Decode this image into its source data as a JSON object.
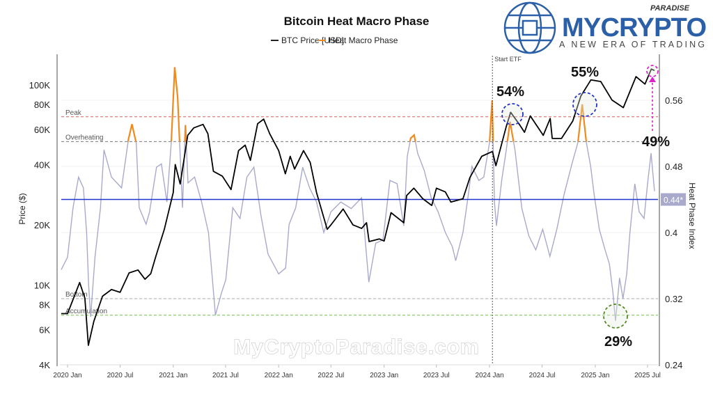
{
  "chart_data": {
    "type": "line",
    "title": "Bitcoin Heat Macro Phase",
    "legend": {
      "placement": "top-center",
      "entries": [
        "BTC Price [USD]",
        "Heat Macro Phase"
      ]
    },
    "ylabel": "Price ($)",
    "y2label": "Heat Phase Index",
    "y_scale": "log",
    "ylim": [
      4000,
      130000
    ],
    "y2lim": [
      0.24,
      0.615
    ],
    "xlim": [
      "2019-12-10",
      "2025-07-28"
    ],
    "grid": true,
    "y_ticks": [
      {
        "v": 4000,
        "label": "4K"
      },
      {
        "v": 6000,
        "label": "6K"
      },
      {
        "v": 8000,
        "label": "8K"
      },
      {
        "v": 10000,
        "label": "10K"
      },
      {
        "v": 20000,
        "label": "20K"
      },
      {
        "v": 40000,
        "label": "40K"
      },
      {
        "v": 60000,
        "label": "60K"
      },
      {
        "v": 80000,
        "label": "80K"
      },
      {
        "v": 100000,
        "label": "100K"
      }
    ],
    "y2_ticks": [
      {
        "v": 0.24,
        "label": "0.24"
      },
      {
        "v": 0.32,
        "label": "0.32"
      },
      {
        "v": 0.4,
        "label": "0.4"
      },
      {
        "v": 0.48,
        "label": "0.48"
      },
      {
        "v": 0.56,
        "label": "0.56"
      }
    ],
    "x_ticks": [
      {
        "d": "2020-01-01",
        "label": "2020 Jan"
      },
      {
        "d": "2020-07-01",
        "label": "2020 Jul"
      },
      {
        "d": "2021-01-01",
        "label": "2021 Jan"
      },
      {
        "d": "2021-07-01",
        "label": "2021 Jul"
      },
      {
        "d": "2022-01-01",
        "label": "2022 Jan"
      },
      {
        "d": "2022-07-01",
        "label": "2022 Jul"
      },
      {
        "d": "2023-01-01",
        "label": "2023 Jan"
      },
      {
        "d": "2023-07-01",
        "label": "2023 Jul"
      },
      {
        "d": "2024-01-01",
        "label": "2024 Jan"
      },
      {
        "d": "2024-07-01",
        "label": "2024 Jul"
      },
      {
        "d": "2025-01-01",
        "label": "2025 Jan"
      },
      {
        "d": "2025-07-01",
        "label": "2025 Jul"
      }
    ],
    "zones": [
      {
        "name": "Peak",
        "value": 0.54,
        "color": "#e05a5a"
      },
      {
        "name": "Overheating",
        "value": 0.51,
        "color": "#777777"
      },
      {
        "name": "Bottom",
        "value": 0.32,
        "color": "#aaaaaa"
      },
      {
        "name": "Accumulation",
        "value": 0.3,
        "color": "#6cc24a"
      }
    ],
    "current_level": {
      "value": 0.44,
      "label": "0.44*",
      "color": "#2233cc"
    },
    "event": {
      "date": "2024-01-11",
      "label": "Start ETF"
    },
    "annotations": [
      {
        "label": "54%",
        "color": "#2233cc"
      },
      {
        "label": "55%",
        "color": "#2233cc"
      },
      {
        "label": "49%",
        "color": "#dd22cc"
      },
      {
        "label": "29%",
        "color": "#558822"
      }
    ],
    "series": [
      {
        "name": "BTC Price [USD]",
        "axis": "left",
        "color": "#000000",
        "points": [
          [
            "2019-12-10",
            7200
          ],
          [
            "2020-01-01",
            7200
          ],
          [
            "2020-02-12",
            10300
          ],
          [
            "2020-03-01",
            8600
          ],
          [
            "2020-03-13",
            5000
          ],
          [
            "2020-04-01",
            6600
          ],
          [
            "2020-05-01",
            8800
          ],
          [
            "2020-06-01",
            9500
          ],
          [
            "2020-07-01",
            9200
          ],
          [
            "2020-08-01",
            11500
          ],
          [
            "2020-09-01",
            11900
          ],
          [
            "2020-09-25",
            10700
          ],
          [
            "2020-10-15",
            11400
          ],
          [
            "2020-11-01",
            13800
          ],
          [
            "2020-12-01",
            19000
          ],
          [
            "2021-01-01",
            29000
          ],
          [
            "2021-01-08",
            40000
          ],
          [
            "2021-01-25",
            32000
          ],
          [
            "2021-02-20",
            56000
          ],
          [
            "2021-03-13",
            61000
          ],
          [
            "2021-04-14",
            63500
          ],
          [
            "2021-05-01",
            57000
          ],
          [
            "2021-05-20",
            37000
          ],
          [
            "2021-06-20",
            35000
          ],
          [
            "2021-07-20",
            30000
          ],
          [
            "2021-08-15",
            47000
          ],
          [
            "2021-09-07",
            50000
          ],
          [
            "2021-09-25",
            42000
          ],
          [
            "2021-10-20",
            64000
          ],
          [
            "2021-11-10",
            67500
          ],
          [
            "2021-12-01",
            57000
          ],
          [
            "2022-01-01",
            47000
          ],
          [
            "2022-01-24",
            36000
          ],
          [
            "2022-02-10",
            44000
          ],
          [
            "2022-02-25",
            38000
          ],
          [
            "2022-03-28",
            47000
          ],
          [
            "2022-04-20",
            41000
          ],
          [
            "2022-05-12",
            29000
          ],
          [
            "2022-06-18",
            19000
          ],
          [
            "2022-07-01",
            20000
          ],
          [
            "2022-08-12",
            24000
          ],
          [
            "2022-09-15",
            20000
          ],
          [
            "2022-10-15",
            19200
          ],
          [
            "2022-11-01",
            20500
          ],
          [
            "2022-11-10",
            16500
          ],
          [
            "2022-12-15",
            17000
          ],
          [
            "2023-01-01",
            16600
          ],
          [
            "2023-01-25",
            23000
          ],
          [
            "2023-03-10",
            20500
          ],
          [
            "2023-03-20",
            28000
          ],
          [
            "2023-04-14",
            30500
          ],
          [
            "2023-05-15",
            27000
          ],
          [
            "2023-06-15",
            25000
          ],
          [
            "2023-07-01",
            30500
          ],
          [
            "2023-08-01",
            29200
          ],
          [
            "2023-08-20",
            26000
          ],
          [
            "2023-10-01",
            27000
          ],
          [
            "2023-10-25",
            34500
          ],
          [
            "2023-12-05",
            44000
          ],
          [
            "2024-01-11",
            46500
          ],
          [
            "2024-01-23",
            39500
          ],
          [
            "2024-02-28",
            62000
          ],
          [
            "2024-03-14",
            73000
          ],
          [
            "2024-04-15",
            63000
          ],
          [
            "2024-05-01",
            58000
          ],
          [
            "2024-05-21",
            70000
          ],
          [
            "2024-07-05",
            56000
          ],
          [
            "2024-07-29",
            68000
          ],
          [
            "2024-08-05",
            54000
          ],
          [
            "2024-09-06",
            54000
          ],
          [
            "2024-10-15",
            66000
          ],
          [
            "2024-11-12",
            88000
          ],
          [
            "2024-12-17",
            106000
          ],
          [
            "2025-01-20",
            104000
          ],
          [
            "2025-02-28",
            84000
          ],
          [
            "2025-04-08",
            77000
          ],
          [
            "2025-05-22",
            110000
          ],
          [
            "2025-06-22",
            101000
          ],
          [
            "2025-07-14",
            120000
          ],
          [
            "2025-07-25",
            118000
          ]
        ]
      },
      {
        "name": "Heat Macro Phase",
        "axis": "right",
        "color": "#a9a9cc",
        "highlight_color": "#f08a1c",
        "highlight_above": 0.51,
        "points": [
          [
            "2019-12-10",
            0.355
          ],
          [
            "2020-01-01",
            0.37
          ],
          [
            "2020-01-20",
            0.43
          ],
          [
            "2020-02-08",
            0.467
          ],
          [
            "2020-02-25",
            0.454
          ],
          [
            "2020-03-07",
            0.4
          ],
          [
            "2020-03-14",
            0.336
          ],
          [
            "2020-03-21",
            0.298
          ],
          [
            "2020-04-05",
            0.37
          ],
          [
            "2020-04-24",
            0.43
          ],
          [
            "2020-05-06",
            0.5
          ],
          [
            "2020-06-01",
            0.467
          ],
          [
            "2020-07-06",
            0.454
          ],
          [
            "2020-07-30",
            0.513
          ],
          [
            "2020-08-11",
            0.531
          ],
          [
            "2020-08-26",
            0.508
          ],
          [
            "2020-09-05",
            0.43
          ],
          [
            "2020-09-29",
            0.41
          ],
          [
            "2020-10-11",
            0.425
          ],
          [
            "2020-11-04",
            0.479
          ],
          [
            "2020-11-21",
            0.483
          ],
          [
            "2020-12-10",
            0.437
          ],
          [
            "2020-12-25",
            0.508
          ],
          [
            "2021-01-06",
            0.6
          ],
          [
            "2021-01-16",
            0.564
          ],
          [
            "2021-01-23",
            0.508
          ],
          [
            "2021-02-02",
            0.43
          ],
          [
            "2021-02-12",
            0.53
          ],
          [
            "2021-02-21",
            0.46
          ],
          [
            "2021-03-16",
            0.467
          ],
          [
            "2021-04-09",
            0.437
          ],
          [
            "2021-05-03",
            0.4
          ],
          [
            "2021-05-27",
            0.3
          ],
          [
            "2021-06-16",
            0.326
          ],
          [
            "2021-07-02",
            0.343
          ],
          [
            "2021-07-26",
            0.43
          ],
          [
            "2021-08-20",
            0.417
          ],
          [
            "2021-09-13",
            0.467
          ],
          [
            "2021-10-07",
            0.479
          ],
          [
            "2021-11-01",
            0.42
          ],
          [
            "2021-11-25",
            0.374
          ],
          [
            "2022-01-01",
            0.35
          ],
          [
            "2022-01-25",
            0.357
          ],
          [
            "2022-02-06",
            0.41
          ],
          [
            "2022-03-01",
            0.43
          ],
          [
            "2022-03-25",
            0.479
          ],
          [
            "2022-04-18",
            0.454
          ],
          [
            "2022-05-12",
            0.437
          ],
          [
            "2022-06-06",
            0.4
          ],
          [
            "2022-07-01",
            0.425
          ],
          [
            "2022-08-04",
            0.437
          ],
          [
            "2022-09-09",
            0.429
          ],
          [
            "2022-10-15",
            0.442
          ],
          [
            "2022-11-09",
            0.34
          ],
          [
            "2022-12-03",
            0.387
          ],
          [
            "2022-12-28",
            0.391
          ],
          [
            "2023-01-21",
            0.463
          ],
          [
            "2023-02-15",
            0.459
          ],
          [
            "2023-03-10",
            0.408
          ],
          [
            "2023-03-22",
            0.492
          ],
          [
            "2023-04-03",
            0.514
          ],
          [
            "2023-04-15",
            0.518
          ],
          [
            "2023-04-27",
            0.496
          ],
          [
            "2023-05-20",
            0.475
          ],
          [
            "2023-06-13",
            0.442
          ],
          [
            "2023-07-07",
            0.425
          ],
          [
            "2023-08-01",
            0.4
          ],
          [
            "2023-08-25",
            0.383
          ],
          [
            "2023-09-06",
            0.366
          ],
          [
            "2023-10-01",
            0.4
          ],
          [
            "2023-10-18",
            0.442
          ],
          [
            "2023-11-01",
            0.48
          ],
          [
            "2023-11-25",
            0.463
          ],
          [
            "2023-12-12",
            0.467
          ],
          [
            "2024-01-01",
            0.509
          ],
          [
            "2024-01-10",
            0.56
          ],
          [
            "2024-01-18",
            0.437
          ],
          [
            "2024-01-25",
            0.408
          ],
          [
            "2024-02-12",
            0.463
          ],
          [
            "2024-02-28",
            0.5
          ],
          [
            "2024-03-12",
            0.534
          ],
          [
            "2024-03-29",
            0.5
          ],
          [
            "2024-04-22",
            0.429
          ],
          [
            "2024-05-16",
            0.396
          ],
          [
            "2024-06-09",
            0.379
          ],
          [
            "2024-07-03",
            0.404
          ],
          [
            "2024-07-28",
            0.371
          ],
          [
            "2024-08-21",
            0.404
          ],
          [
            "2024-09-15",
            0.446
          ],
          [
            "2024-10-13",
            0.484
          ],
          [
            "2024-11-02",
            0.509
          ],
          [
            "2024-11-17",
            0.555
          ],
          [
            "2024-12-01",
            0.509
          ],
          [
            "2024-12-16",
            0.48
          ],
          [
            "2024-12-28",
            0.446
          ],
          [
            "2025-01-15",
            0.404
          ],
          [
            "2025-02-04",
            0.379
          ],
          [
            "2025-02-19",
            0.362
          ],
          [
            "2025-03-03",
            0.328
          ],
          [
            "2025-03-12",
            0.293
          ],
          [
            "2025-03-26",
            0.345
          ],
          [
            "2025-04-07",
            0.32
          ],
          [
            "2025-04-20",
            0.35
          ],
          [
            "2025-05-01",
            0.4
          ],
          [
            "2025-05-18",
            0.459
          ],
          [
            "2025-06-02",
            0.425
          ],
          [
            "2025-06-19",
            0.417
          ],
          [
            "2025-07-01",
            0.459
          ],
          [
            "2025-07-13",
            0.496
          ],
          [
            "2025-07-25",
            0.45
          ]
        ]
      }
    ]
  },
  "branding": {
    "logo_top": "PARADISE",
    "logo_main": "MYCRYPTO",
    "logo_tagline": "A NEW ERA OF TRADING",
    "watermark": "MyCryptoParadise.com"
  }
}
